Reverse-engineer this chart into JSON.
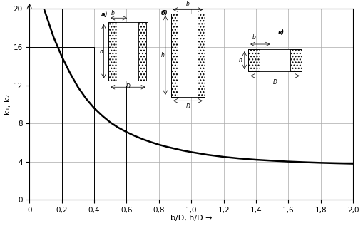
{
  "xlabel": "b/D, h/D →",
  "ylabel": "k₁, k₂",
  "xlim": [
    0,
    2.0
  ],
  "ylim": [
    0,
    20
  ],
  "xticks": [
    0,
    0.2,
    0.4,
    0.6,
    0.8,
    1.0,
    1.2,
    1.4,
    1.6,
    1.8,
    2.0
  ],
  "xticklabels": [
    "0",
    "0,2",
    "0,4",
    "0,6",
    "0,8",
    "1,0",
    "1,2",
    "1,4",
    "1,6",
    "1,8",
    "2,0"
  ],
  "yticks": [
    0,
    4,
    8,
    12,
    16,
    20
  ],
  "curve_x": [
    0.05,
    0.08,
    0.1,
    0.12,
    0.15,
    0.18,
    0.2,
    0.25,
    0.3,
    0.35,
    0.4,
    0.45,
    0.5,
    0.55,
    0.6,
    0.65,
    0.7,
    0.75,
    0.8,
    0.85,
    0.9,
    0.95,
    1.0,
    1.1,
    1.2,
    1.3,
    1.4,
    1.5,
    1.6,
    1.7,
    1.8,
    1.9,
    2.0
  ],
  "curve_y": [
    22.0,
    20.5,
    19.5,
    18.5,
    17.0,
    15.8,
    15.0,
    13.3,
    11.8,
    10.6,
    9.6,
    8.8,
    8.1,
    7.55,
    7.1,
    6.7,
    6.35,
    6.05,
    5.78,
    5.55,
    5.35,
    5.16,
    5.0,
    4.72,
    4.5,
    4.33,
    4.2,
    4.1,
    4.01,
    3.94,
    3.88,
    3.83,
    3.79
  ],
  "step_lines": [
    {
      "x": [
        0,
        0.2,
        0.2
      ],
      "y": [
        20,
        20,
        0
      ]
    },
    {
      "x": [
        0,
        0.4,
        0.4
      ],
      "y": [
        16,
        16,
        0
      ]
    },
    {
      "x": [
        0,
        0.6,
        0.6
      ],
      "y": [
        12,
        12,
        0
      ]
    }
  ],
  "curve_color": "#000000",
  "curve_linewidth": 1.8,
  "step_color": "#000000",
  "step_linewidth": 0.7,
  "grid_color": "#aaaaaa",
  "grid_linewidth": 0.5,
  "background_color": "#ffffff",
  "font_size_labels": 8,
  "font_size_ticks": 7.5
}
